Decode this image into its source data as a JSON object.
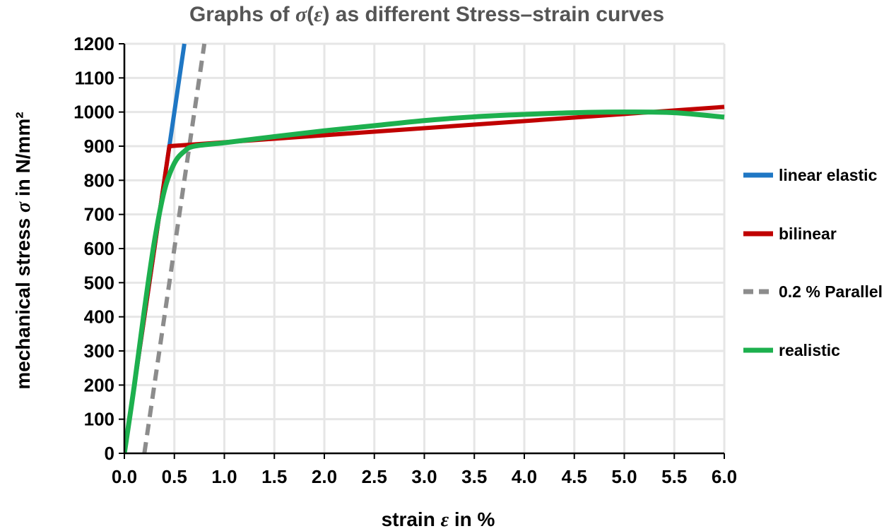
{
  "chart_data": {
    "type": "line",
    "title": "Graphs of σ(ε) as different Stress–strain curves",
    "title_parts": [
      "Graphs of ",
      "σ",
      "(",
      "ε",
      ") as different Stress–strain curves"
    ],
    "xlabel": "strain  ε in %",
    "xlabel_parts": [
      "strain  ",
      "ε",
      " in %"
    ],
    "ylabel": "mechanical stress  σ in N/mm²",
    "ylabel_parts": [
      "mechanical stress  ",
      "σ",
      " in N/mm²"
    ],
    "xlim": [
      0,
      6
    ],
    "ylim": [
      0,
      1200
    ],
    "x_ticks": [
      "0.0",
      "0.5",
      "1.0",
      "1.5",
      "2.0",
      "2.5",
      "3.0",
      "3.5",
      "4.0",
      "4.5",
      "5.0",
      "5.5",
      "6.0"
    ],
    "y_ticks": [
      "0",
      "100",
      "200",
      "300",
      "400",
      "500",
      "600",
      "700",
      "800",
      "900",
      "1000",
      "1100",
      "1200"
    ],
    "grid": true,
    "legend_position": "right",
    "series": [
      {
        "name": "linear elastic",
        "color": "#1f77c4",
        "style": "solid",
        "points": [
          [
            0,
            0
          ],
          [
            0.6,
            1200
          ]
        ]
      },
      {
        "name": "bilinear",
        "color": "#c00000",
        "style": "solid",
        "points": [
          [
            0,
            0
          ],
          [
            0.45,
            900
          ],
          [
            6.0,
            1015
          ]
        ]
      },
      {
        "name": "0.2 % Parallel",
        "color": "#8c8c8c",
        "style": "dashed",
        "points": [
          [
            0.2,
            0
          ],
          [
            0.8,
            1200
          ]
        ]
      },
      {
        "name": "realistic",
        "color": "#1db04e",
        "style": "solid",
        "points": [
          [
            0,
            0
          ],
          [
            0.1,
            200
          ],
          [
            0.2,
            420
          ],
          [
            0.3,
            620
          ],
          [
            0.4,
            770
          ],
          [
            0.5,
            850
          ],
          [
            0.6,
            885
          ],
          [
            0.7,
            900
          ],
          [
            1.0,
            910
          ],
          [
            1.5,
            928
          ],
          [
            2.0,
            945
          ],
          [
            2.5,
            960
          ],
          [
            3.0,
            975
          ],
          [
            3.5,
            986
          ],
          [
            4.0,
            993
          ],
          [
            4.5,
            998
          ],
          [
            5.0,
            1000
          ],
          [
            5.5,
            998
          ],
          [
            6.0,
            985
          ]
        ]
      }
    ]
  }
}
